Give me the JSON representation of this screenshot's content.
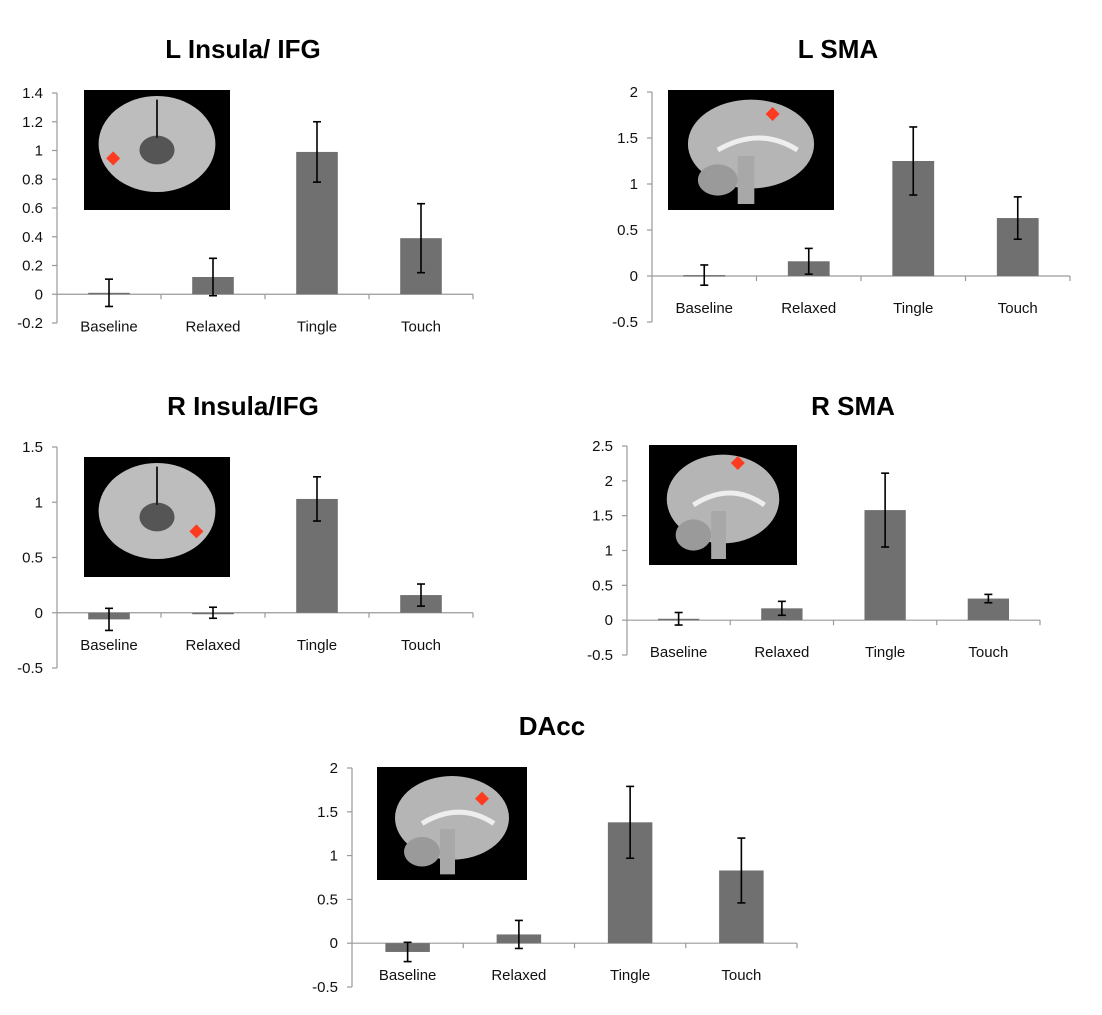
{
  "colors": {
    "bar": "#707070",
    "marker": "#ff3b1f",
    "inset_bg": "#000000"
  },
  "chart_data": [
    {
      "type": "bar",
      "title": "L Insula/ IFG",
      "categories": [
        "Baseline",
        "Relaxed",
        "Tingle",
        "Touch"
      ],
      "values": [
        0.01,
        0.12,
        0.99,
        0.39
      ],
      "errors": [
        0.095,
        0.13,
        0.21,
        0.24
      ],
      "ylim": [
        -0.2,
        1.4
      ],
      "yticks": [
        "-0.2",
        "0",
        "0.2",
        "0.4",
        "0.6",
        "0.8",
        "1",
        "1.2",
        "1.4"
      ],
      "inset": "coronal-left"
    },
    {
      "type": "bar",
      "title": "L SMA",
      "categories": [
        "Baseline",
        "Relaxed",
        "Tingle",
        "Touch"
      ],
      "values": [
        0.01,
        0.16,
        1.25,
        0.63
      ],
      "errors": [
        0.11,
        0.14,
        0.37,
        0.23
      ],
      "ylim": [
        -0.5,
        2
      ],
      "yticks": [
        "-0.5",
        "0",
        "0.5",
        "1",
        "1.5",
        "2"
      ],
      "inset": "sagittal-sma"
    },
    {
      "type": "bar",
      "title": "R Insula/IFG",
      "categories": [
        "Baseline",
        "Relaxed",
        "Tingle",
        "Touch"
      ],
      "values": [
        -0.06,
        0.0,
        1.03,
        0.16
      ],
      "errors": [
        0.1,
        0.05,
        0.2,
        0.1
      ],
      "ylim": [
        -0.5,
        1.5
      ],
      "yticks": [
        "-0.5",
        "0",
        "0.5",
        "1",
        "1.5"
      ],
      "inset": "coronal-right"
    },
    {
      "type": "bar",
      "title": "R SMA",
      "categories": [
        "Baseline",
        "Relaxed",
        "Tingle",
        "Touch"
      ],
      "values": [
        0.02,
        0.17,
        1.58,
        0.31
      ],
      "errors": [
        0.09,
        0.1,
        0.53,
        0.06
      ],
      "ylim": [
        -0.5,
        2.5
      ],
      "yticks": [
        "-0.5",
        "0",
        "0.5",
        "1",
        "1.5",
        "2",
        "2.5"
      ],
      "inset": "sagittal-sma"
    },
    {
      "type": "bar",
      "title": "DAcc",
      "categories": [
        "Baseline",
        "Relaxed",
        "Tingle",
        "Touch"
      ],
      "values": [
        -0.1,
        0.1,
        1.38,
        0.83
      ],
      "errors": [
        0.11,
        0.16,
        0.41,
        0.37
      ],
      "ylim": [
        -0.5,
        2
      ],
      "yticks": [
        "-0.5",
        "0",
        "0.5",
        "1",
        "1.5",
        "2"
      ],
      "inset": "sagittal-acc"
    }
  ]
}
